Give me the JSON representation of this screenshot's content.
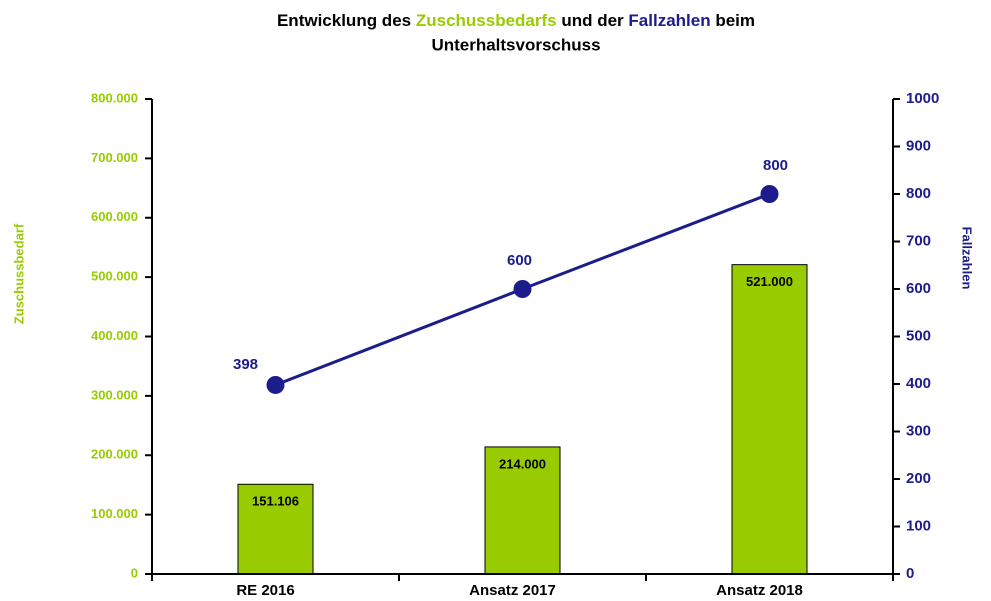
{
  "chart_data": {
    "type": "bar",
    "title": [
      "Entwicklung des",
      "Zuschussbedarfs",
      "und der",
      "Fallzahlen",
      "beim",
      "Unterhaltsvorschuss"
    ],
    "categories": [
      "RE 2016",
      "Ansatz 2017",
      "Ansatz 2018"
    ],
    "ylabel": "Zuschussbedarf",
    "y2label": "Fallzahlen",
    "ylim": [
      0,
      800000
    ],
    "yticks": [
      0,
      {
        "value": 100000,
        "label": "100.000"
      },
      {
        "value": 200000,
        "label": "200.000"
      },
      {
        "value": 300000,
        "label": "300.000"
      },
      {
        "value": 400000,
        "label": "400.000"
      },
      {
        "value": 500000,
        "label": "500.000"
      },
      {
        "value": 600000,
        "label": "600.000"
      },
      {
        "value": 700000,
        "label": "700.000"
      },
      {
        "value": 800000,
        "label": "800.000"
      }
    ],
    "y2lim": [
      0,
      1000
    ],
    "y2ticks": [
      0,
      100,
      200,
      300,
      400,
      500,
      600,
      700,
      800,
      900,
      1000
    ],
    "series": [
      {
        "type": "bar",
        "color": "#99cc00",
        "values": [
          151106,
          214000,
          521000
        ],
        "value_labels": [
          "151.106",
          "214.000",
          "521.000"
        ]
      },
      {
        "type": "line",
        "axis": "y2",
        "color": "#1c1c8c",
        "values": [
          398,
          600,
          800
        ]
      }
    ]
  }
}
